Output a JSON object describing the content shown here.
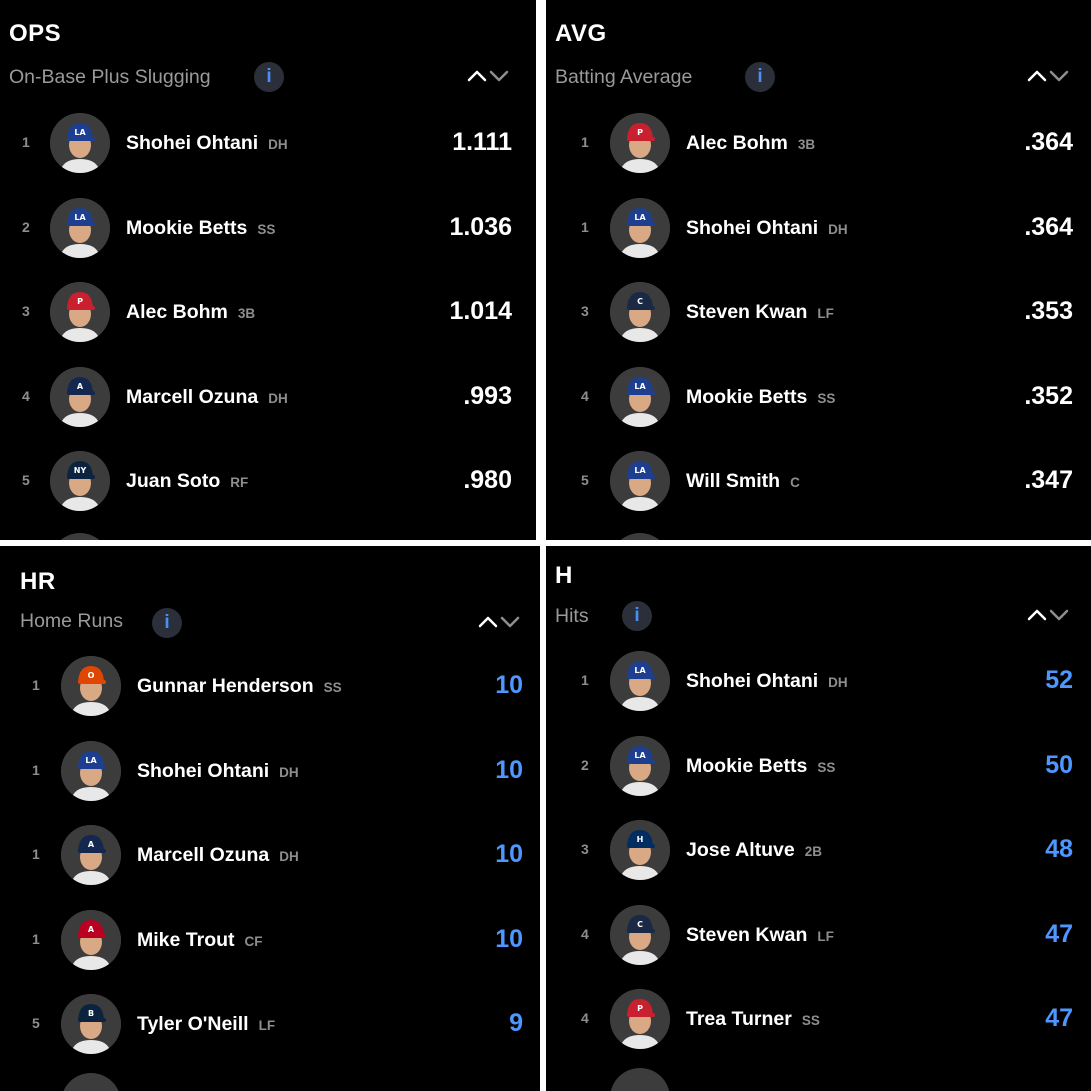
{
  "panels": [
    {
      "abbr": "OPS",
      "subtitle": "On-Base Plus Slugging",
      "value_color": "#ffffff",
      "players": [
        {
          "rank": "1",
          "name": "Shohei Ohtani",
          "pos": "DH",
          "value": "1.111",
          "cap": "#1e3f8f",
          "logo": "LA"
        },
        {
          "rank": "2",
          "name": "Mookie Betts",
          "pos": "SS",
          "value": "1.036",
          "cap": "#1e3f8f",
          "logo": "LA"
        },
        {
          "rank": "3",
          "name": "Alec Bohm",
          "pos": "3B",
          "value": "1.014",
          "cap": "#c8202f",
          "logo": "P"
        },
        {
          "rank": "4",
          "name": "Marcell Ozuna",
          "pos": "DH",
          "value": ".993",
          "cap": "#13274f",
          "logo": "A"
        },
        {
          "rank": "5",
          "name": "Juan Soto",
          "pos": "RF",
          "value": ".980",
          "cap": "#0c2340",
          "logo": "NY"
        }
      ]
    },
    {
      "abbr": "AVG",
      "subtitle": "Batting Average",
      "value_color": "#ffffff",
      "players": [
        {
          "rank": "1",
          "name": "Alec Bohm",
          "pos": "3B",
          "value": ".364",
          "cap": "#c8202f",
          "logo": "P"
        },
        {
          "rank": "1",
          "name": "Shohei Ohtani",
          "pos": "DH",
          "value": ".364",
          "cap": "#1e3f8f",
          "logo": "LA"
        },
        {
          "rank": "3",
          "name": "Steven Kwan",
          "pos": "LF",
          "value": ".353",
          "cap": "#1a2a44",
          "logo": "C"
        },
        {
          "rank": "4",
          "name": "Mookie Betts",
          "pos": "SS",
          "value": ".352",
          "cap": "#1e3f8f",
          "logo": "LA"
        },
        {
          "rank": "5",
          "name": "Will Smith",
          "pos": "C",
          "value": ".347",
          "cap": "#1e3f8f",
          "logo": "LA"
        }
      ]
    },
    {
      "abbr": "HR",
      "subtitle": "Home Runs",
      "value_color": "#4d97ff",
      "players": [
        {
          "rank": "1",
          "name": "Gunnar Henderson",
          "pos": "SS",
          "value": "10",
          "cap": "#df4601",
          "logo": "O"
        },
        {
          "rank": "1",
          "name": "Shohei Ohtani",
          "pos": "DH",
          "value": "10",
          "cap": "#1e3f8f",
          "logo": "LA"
        },
        {
          "rank": "1",
          "name": "Marcell Ozuna",
          "pos": "DH",
          "value": "10",
          "cap": "#13274f",
          "logo": "A"
        },
        {
          "rank": "1",
          "name": "Mike Trout",
          "pos": "CF",
          "value": "10",
          "cap": "#ba0021",
          "logo": "A"
        },
        {
          "rank": "5",
          "name": "Tyler O'Neill",
          "pos": "LF",
          "value": "9",
          "cap": "#0c2340",
          "logo": "B"
        }
      ]
    },
    {
      "abbr": "H",
      "subtitle": "Hits",
      "value_color": "#4d97ff",
      "players": [
        {
          "rank": "1",
          "name": "Shohei Ohtani",
          "pos": "DH",
          "value": "52",
          "cap": "#1e3f8f",
          "logo": "LA"
        },
        {
          "rank": "2",
          "name": "Mookie Betts",
          "pos": "SS",
          "value": "50",
          "cap": "#1e3f8f",
          "logo": "LA"
        },
        {
          "rank": "3",
          "name": "Jose Altuve",
          "pos": "2B",
          "value": "48",
          "cap": "#002d62",
          "logo": "H"
        },
        {
          "rank": "4",
          "name": "Steven Kwan",
          "pos": "LF",
          "value": "47",
          "cap": "#1a2a44",
          "logo": "C"
        },
        {
          "rank": "4",
          "name": "Trea Turner",
          "pos": "SS",
          "value": "47",
          "cap": "#c8202f",
          "logo": "P"
        }
      ]
    }
  ],
  "info_glyph": "i",
  "icons": {
    "info": "info-icon",
    "sort": "sort-toggle-icon",
    "avatar": "player-headshot-icon"
  }
}
